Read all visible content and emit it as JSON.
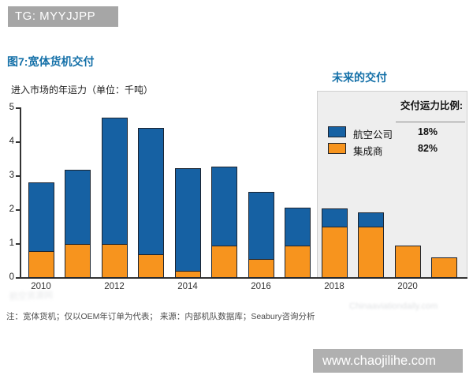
{
  "badge": {
    "text": "TG: MYYJJPP"
  },
  "header": {
    "title": "图7:宽体货机交付"
  },
  "legend": {
    "title": "交付运力比例:",
    "items": [
      {
        "key": "airlines",
        "label": "航空公司",
        "value": "18%",
        "color": "#1661a3"
      },
      {
        "key": "integrators",
        "label": "集成商",
        "value": "82%",
        "color": "#f7941e"
      }
    ]
  },
  "note": "注：宽体货机；仅以OEM年订单为代表；  来源：内部机队数据库；Seabury咨询分析",
  "watermarks": {
    "left": "航空资源网",
    "right": "Chinaaviationdaily.com"
  },
  "site_watermark": "www.chaojilihe.com",
  "colors": {
    "airlines_blue": "#1661a3",
    "integrators_orange": "#f7941e",
    "title_blue": "#1470a8",
    "future_panel_gray": "#eeeeee",
    "badge_gray": "#a6a6a6",
    "site_bar_gray": "#b0b0b0"
  },
  "chart_data": {
    "type": "bar",
    "stacked": true,
    "title": "图7:宽体货机交付",
    "ylabel": "进入市场的年运力（单位：千吨）",
    "xlabel": "",
    "ylim": [
      0,
      5
    ],
    "yticks": [
      0,
      1,
      2,
      3,
      4,
      5
    ],
    "grid": false,
    "categories": [
      2010,
      2011,
      2012,
      2013,
      2014,
      2015,
      2016,
      2017,
      2018,
      2019,
      2020,
      2021
    ],
    "xtick_labels": [
      "2010",
      "2012",
      "2014",
      "2016",
      "2018",
      "2020"
    ],
    "series": [
      {
        "key": "airlines",
        "name": "航空公司",
        "color": "#1661a3",
        "values": [
          2.05,
          2.2,
          3.75,
          3.75,
          3.05,
          2.35,
          2.0,
          1.15,
          0.55,
          0.45,
          0,
          0
        ]
      },
      {
        "key": "integrators",
        "name": "集成商",
        "color": "#f7941e",
        "values": [
          0.8,
          1.0,
          1.0,
          0.7,
          0.2,
          0.95,
          0.55,
          0.95,
          1.5,
          1.5,
          0.95,
          0.6
        ]
      }
    ],
    "future_region": {
      "label": "未来的交付",
      "start_year": 2018,
      "end_year": 2021
    }
  }
}
